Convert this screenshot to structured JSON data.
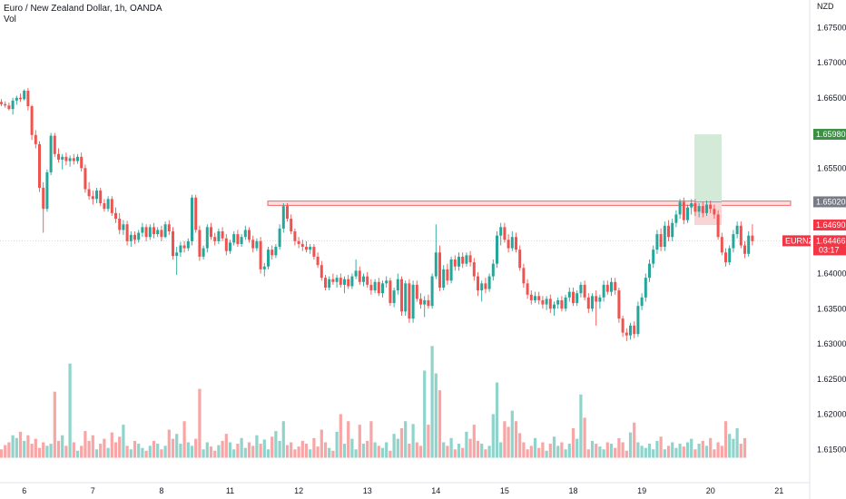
{
  "header": {
    "title": "Euro / New Zealand Dollar, 1h, OANDA",
    "volume_label": "Vol"
  },
  "colors": {
    "up": "#26a69a",
    "down": "#ef5350",
    "volume_up": "#8fd3cb",
    "volume_down": "#f7a6a5",
    "zone_fill": "#fbd3d3",
    "zone_stroke": "#ef5350",
    "target_fill": "#d4ead8",
    "stop_fill": "#f9d4d4",
    "target_badge": "#3d8f45",
    "entry_badge": "#787b86",
    "stop_badge": "#f23645",
    "last_badge": "#f23645"
  },
  "chart_data": {
    "type": "candlestick",
    "symbol": "EURNZD",
    "currency": "NZD",
    "ylim": [
      1.61,
      1.678
    ],
    "y_ticks": [
      "1.67500",
      "1.67000",
      "1.66500",
      "1.66000",
      "1.65500",
      "1.65000",
      "1.64500",
      "1.64000",
      "1.63500",
      "1.63000",
      "1.62500",
      "1.62000",
      "1.61500"
    ],
    "x_ticks": [
      "6",
      "7",
      "8",
      "11",
      "12",
      "13",
      "14",
      "15",
      "18",
      "19",
      "20",
      "21"
    ],
    "x_tick_slots": [
      6,
      24,
      42,
      60,
      78,
      96,
      114,
      132,
      150,
      168,
      186,
      204
    ],
    "candles": [
      [
        1.6644,
        1.6648,
        1.6638,
        1.6641
      ],
      [
        1.6641,
        1.6645,
        1.6636,
        1.6639
      ],
      [
        1.6639,
        1.6643,
        1.6632,
        1.6634
      ],
      [
        1.6634,
        1.665,
        1.6626,
        1.6646
      ],
      [
        1.6646,
        1.6653,
        1.664,
        1.665
      ],
      [
        1.665,
        1.6656,
        1.6644,
        1.6648
      ],
      [
        1.6648,
        1.6662,
        1.6646,
        1.666
      ],
      [
        1.666,
        1.6664,
        1.6632,
        1.6638
      ],
      [
        1.6638,
        1.664,
        1.659,
        1.6597
      ],
      [
        1.6597,
        1.6604,
        1.6578,
        1.6584
      ],
      [
        1.6584,
        1.6588,
        1.6516,
        1.6522
      ],
      [
        1.6522,
        1.653,
        1.6458,
        1.6492
      ],
      [
        1.6492,
        1.6548,
        1.6488,
        1.6544
      ],
      [
        1.6544,
        1.66,
        1.654,
        1.6596
      ],
      [
        1.6596,
        1.66,
        1.6566,
        1.657
      ],
      [
        1.657,
        1.6578,
        1.6558,
        1.6562
      ],
      [
        1.6562,
        1.657,
        1.6548,
        1.6566
      ],
      [
        1.6566,
        1.6572,
        1.6554,
        1.656
      ],
      [
        1.656,
        1.6568,
        1.6552,
        1.6564
      ],
      [
        1.6564,
        1.657,
        1.6555,
        1.656
      ],
      [
        1.656,
        1.657,
        1.6556,
        1.6566
      ],
      [
        1.6566,
        1.6572,
        1.6545,
        1.655
      ],
      [
        1.655,
        1.6555,
        1.6515,
        1.652
      ],
      [
        1.652,
        1.653,
        1.6505,
        1.651
      ],
      [
        1.651,
        1.6518,
        1.6498,
        1.6506
      ],
      [
        1.6506,
        1.6522,
        1.65,
        1.6518
      ],
      [
        1.6518,
        1.6522,
        1.6496,
        1.65
      ],
      [
        1.65,
        1.6506,
        1.6488,
        1.6492
      ],
      [
        1.6492,
        1.651,
        1.6488,
        1.6506
      ],
      [
        1.6506,
        1.651,
        1.6482,
        1.6486
      ],
      [
        1.6486,
        1.6494,
        1.6472,
        1.6478
      ],
      [
        1.6478,
        1.6486,
        1.6456,
        1.6462
      ],
      [
        1.6462,
        1.6476,
        1.6455,
        1.647
      ],
      [
        1.647,
        1.6475,
        1.644,
        1.6446
      ],
      [
        1.6446,
        1.646,
        1.6438,
        1.6455
      ],
      [
        1.6455,
        1.646,
        1.6442,
        1.6448
      ],
      [
        1.6448,
        1.6462,
        1.6444,
        1.6458
      ],
      [
        1.6458,
        1.6472,
        1.6452,
        1.6466
      ],
      [
        1.6466,
        1.647,
        1.6446,
        1.6452
      ],
      [
        1.6452,
        1.647,
        1.6448,
        1.6466
      ],
      [
        1.6466,
        1.6472,
        1.645,
        1.6456
      ],
      [
        1.6456,
        1.6466,
        1.6452,
        1.6462
      ],
      [
        1.6462,
        1.6468,
        1.6446,
        1.6452
      ],
      [
        1.6452,
        1.6474,
        1.645,
        1.647
      ],
      [
        1.647,
        1.6476,
        1.6455,
        1.646
      ],
      [
        1.646,
        1.6466,
        1.642,
        1.6425
      ],
      [
        1.6425,
        1.6438,
        1.6398,
        1.643
      ],
      [
        1.643,
        1.6445,
        1.6424,
        1.644
      ],
      [
        1.644,
        1.6446,
        1.643,
        1.6436
      ],
      [
        1.6436,
        1.645,
        1.6432,
        1.6446
      ],
      [
        1.6446,
        1.6512,
        1.644,
        1.6508
      ],
      [
        1.6508,
        1.6512,
        1.6458,
        1.6462
      ],
      [
        1.6462,
        1.6468,
        1.6418,
        1.6424
      ],
      [
        1.6424,
        1.644,
        1.642,
        1.6436
      ],
      [
        1.6436,
        1.647,
        1.643,
        1.6466
      ],
      [
        1.6466,
        1.6472,
        1.6448,
        1.6452
      ],
      [
        1.6452,
        1.6458,
        1.644,
        1.6446
      ],
      [
        1.6446,
        1.6464,
        1.6442,
        1.646
      ],
      [
        1.646,
        1.6466,
        1.6446,
        1.645
      ],
      [
        1.645,
        1.6456,
        1.6426,
        1.6432
      ],
      [
        1.6432,
        1.6448,
        1.6428,
        1.6444
      ],
      [
        1.6444,
        1.646,
        1.644,
        1.6456
      ],
      [
        1.6456,
        1.6462,
        1.6438,
        1.6442
      ],
      [
        1.6442,
        1.6456,
        1.6438,
        1.6452
      ],
      [
        1.6452,
        1.6468,
        1.6448,
        1.6462
      ],
      [
        1.6462,
        1.6466,
        1.6444,
        1.6448
      ],
      [
        1.6448,
        1.6454,
        1.643,
        1.6436
      ],
      [
        1.6436,
        1.645,
        1.6432,
        1.6446
      ],
      [
        1.6446,
        1.6452,
        1.64,
        1.6406
      ],
      [
        1.6406,
        1.6415,
        1.6396,
        1.641
      ],
      [
        1.641,
        1.6438,
        1.6406,
        1.6434
      ],
      [
        1.6434,
        1.644,
        1.642,
        1.6426
      ],
      [
        1.6426,
        1.6442,
        1.6422,
        1.6438
      ],
      [
        1.6438,
        1.647,
        1.6434,
        1.6464
      ],
      [
        1.6464,
        1.65,
        1.6458,
        1.6496
      ],
      [
        1.6496,
        1.65,
        1.6474,
        1.6478
      ],
      [
        1.6478,
        1.6484,
        1.6456,
        1.646
      ],
      [
        1.646,
        1.6464,
        1.644,
        1.6446
      ],
      [
        1.6446,
        1.6452,
        1.6436,
        1.6442
      ],
      [
        1.6442,
        1.6448,
        1.6432,
        1.6438
      ],
      [
        1.6438,
        1.6446,
        1.643,
        1.6434
      ],
      [
        1.6434,
        1.6442,
        1.6428,
        1.6438
      ],
      [
        1.6438,
        1.6442,
        1.642,
        1.6424
      ],
      [
        1.6424,
        1.643,
        1.6408,
        1.6412
      ],
      [
        1.6412,
        1.6418,
        1.639,
        1.6394
      ],
      [
        1.6394,
        1.6398,
        1.6376,
        1.638
      ],
      [
        1.638,
        1.6396,
        1.6376,
        1.6392
      ],
      [
        1.6392,
        1.64,
        1.6384,
        1.6388
      ],
      [
        1.6388,
        1.6398,
        1.638,
        1.6394
      ],
      [
        1.6394,
        1.64,
        1.638,
        1.6384
      ],
      [
        1.6384,
        1.6396,
        1.6372,
        1.6392
      ],
      [
        1.6392,
        1.6398,
        1.6378,
        1.6382
      ],
      [
        1.6382,
        1.64,
        1.6378,
        1.6396
      ],
      [
        1.6396,
        1.642,
        1.6392,
        1.6404
      ],
      [
        1.6404,
        1.641,
        1.6384,
        1.6388
      ],
      [
        1.6388,
        1.64,
        1.6382,
        1.6396
      ],
      [
        1.6396,
        1.6402,
        1.638,
        1.6384
      ],
      [
        1.6384,
        1.6392,
        1.637,
        1.6376
      ],
      [
        1.6376,
        1.6392,
        1.6372,
        1.6388
      ],
      [
        1.6388,
        1.6394,
        1.6368,
        1.6372
      ],
      [
        1.6372,
        1.639,
        1.6366,
        1.6386
      ],
      [
        1.6386,
        1.6396,
        1.638,
        1.639
      ],
      [
        1.639,
        1.6394,
        1.6354,
        1.6358
      ],
      [
        1.6358,
        1.638,
        1.6352,
        1.6376
      ],
      [
        1.6376,
        1.64,
        1.637,
        1.6392
      ],
      [
        1.6392,
        1.6396,
        1.634,
        1.6346
      ],
      [
        1.6346,
        1.639,
        1.634,
        1.6386
      ],
      [
        1.6386,
        1.6392,
        1.633,
        1.6336
      ],
      [
        1.6336,
        1.639,
        1.633,
        1.6384
      ],
      [
        1.6384,
        1.639,
        1.636,
        1.6364
      ],
      [
        1.6364,
        1.6372,
        1.635,
        1.6356
      ],
      [
        1.6356,
        1.6368,
        1.6338,
        1.6362
      ],
      [
        1.6362,
        1.637,
        1.635,
        1.6354
      ],
      [
        1.6354,
        1.64,
        1.635,
        1.6396
      ],
      [
        1.6396,
        1.647,
        1.6392,
        1.643
      ],
      [
        1.643,
        1.644,
        1.6375,
        1.638
      ],
      [
        1.638,
        1.6412,
        1.6376,
        1.6406
      ],
      [
        1.6406,
        1.6414,
        1.6384,
        1.639
      ],
      [
        1.639,
        1.6424,
        1.6386,
        1.642
      ],
      [
        1.642,
        1.6426,
        1.6404,
        1.641
      ],
      [
        1.641,
        1.643,
        1.6404,
        1.6424
      ],
      [
        1.6424,
        1.643,
        1.6408,
        1.6414
      ],
      [
        1.6414,
        1.643,
        1.641,
        1.6426
      ],
      [
        1.6426,
        1.6432,
        1.641,
        1.6416
      ],
      [
        1.6416,
        1.6422,
        1.639,
        1.6396
      ],
      [
        1.6396,
        1.6402,
        1.6368,
        1.6376
      ],
      [
        1.6376,
        1.639,
        1.636,
        1.6386
      ],
      [
        1.6386,
        1.6394,
        1.6372,
        1.6378
      ],
      [
        1.6378,
        1.64,
        1.6374,
        1.6396
      ],
      [
        1.6396,
        1.642,
        1.639,
        1.6414
      ],
      [
        1.6414,
        1.646,
        1.6408,
        1.6454
      ],
      [
        1.6454,
        1.6472,
        1.644,
        1.6466
      ],
      [
        1.6466,
        1.6472,
        1.6444,
        1.6448
      ],
      [
        1.6448,
        1.6456,
        1.643,
        1.6436
      ],
      [
        1.6436,
        1.646,
        1.6432,
        1.6452
      ],
      [
        1.6452,
        1.6458,
        1.643,
        1.6434
      ],
      [
        1.6434,
        1.644,
        1.6404,
        1.6408
      ],
      [
        1.6408,
        1.6414,
        1.638,
        1.6386
      ],
      [
        1.6386,
        1.6392,
        1.6364,
        1.637
      ],
      [
        1.637,
        1.6376,
        1.6356,
        1.6362
      ],
      [
        1.6362,
        1.6374,
        1.6358,
        1.6368
      ],
      [
        1.6368,
        1.6374,
        1.6356,
        1.6362
      ],
      [
        1.6362,
        1.6368,
        1.635,
        1.6356
      ],
      [
        1.6356,
        1.6368,
        1.6348,
        1.6364
      ],
      [
        1.6364,
        1.637,
        1.6344,
        1.635
      ],
      [
        1.635,
        1.636,
        1.634,
        1.6356
      ],
      [
        1.6356,
        1.6366,
        1.635,
        1.6362
      ],
      [
        1.6362,
        1.6368,
        1.6346,
        1.635
      ],
      [
        1.635,
        1.637,
        1.6346,
        1.6366
      ],
      [
        1.6366,
        1.638,
        1.636,
        1.6374
      ],
      [
        1.6374,
        1.638,
        1.6354,
        1.6358
      ],
      [
        1.6358,
        1.6376,
        1.6354,
        1.6372
      ],
      [
        1.6372,
        1.6388,
        1.6366,
        1.6384
      ],
      [
        1.6384,
        1.639,
        1.6362,
        1.6366
      ],
      [
        1.6366,
        1.6372,
        1.6344,
        1.635
      ],
      [
        1.635,
        1.6372,
        1.6346,
        1.6368
      ],
      [
        1.6368,
        1.6376,
        1.6326,
        1.636
      ],
      [
        1.636,
        1.637,
        1.635,
        1.6366
      ],
      [
        1.6366,
        1.639,
        1.636,
        1.6384
      ],
      [
        1.6384,
        1.639,
        1.637,
        1.6374
      ],
      [
        1.6374,
        1.6394,
        1.6368,
        1.6388
      ],
      [
        1.6388,
        1.6394,
        1.637,
        1.6376
      ],
      [
        1.6376,
        1.638,
        1.633,
        1.6336
      ],
      [
        1.6336,
        1.634,
        1.631,
        1.6316
      ],
      [
        1.6316,
        1.6322,
        1.6304,
        1.6312
      ],
      [
        1.6312,
        1.633,
        1.6306,
        1.6326
      ],
      [
        1.6326,
        1.6332,
        1.6308,
        1.6314
      ],
      [
        1.6314,
        1.636,
        1.631,
        1.6354
      ],
      [
        1.6354,
        1.6372,
        1.6348,
        1.6366
      ],
      [
        1.6366,
        1.64,
        1.636,
        1.6394
      ],
      [
        1.6394,
        1.642,
        1.6388,
        1.6414
      ],
      [
        1.6414,
        1.644,
        1.6408,
        1.6434
      ],
      [
        1.6434,
        1.6462,
        1.6428,
        1.6456
      ],
      [
        1.6456,
        1.6464,
        1.6432,
        1.6438
      ],
      [
        1.6438,
        1.6474,
        1.6432,
        1.6468
      ],
      [
        1.6468,
        1.6476,
        1.6446,
        1.6452
      ],
      [
        1.6452,
        1.6478,
        1.6446,
        1.6472
      ],
      [
        1.6472,
        1.649,
        1.6466,
        1.6484
      ],
      [
        1.6484,
        1.6506,
        1.6478,
        1.6502
      ],
      [
        1.6502,
        1.6508,
        1.647,
        1.6476
      ],
      [
        1.6476,
        1.6498,
        1.6472,
        1.6494
      ],
      [
        1.6494,
        1.6506,
        1.6484,
        1.65
      ],
      [
        1.65,
        1.6506,
        1.6482,
        1.6488
      ],
      [
        1.6488,
        1.65,
        1.648,
        1.6496
      ],
      [
        1.6496,
        1.6502,
        1.648,
        1.6486
      ],
      [
        1.6486,
        1.6504,
        1.6482,
        1.6498
      ],
      [
        1.6498,
        1.6504,
        1.6486,
        1.6492
      ],
      [
        1.6492,
        1.6498,
        1.6478,
        1.6484
      ],
      [
        1.6484,
        1.649,
        1.6448,
        1.6452
      ],
      [
        1.6452,
        1.6458,
        1.6426,
        1.643
      ],
      [
        1.643,
        1.6436,
        1.641,
        1.6416
      ],
      [
        1.6416,
        1.644,
        1.6412,
        1.6436
      ],
      [
        1.6436,
        1.6462,
        1.643,
        1.6456
      ],
      [
        1.6456,
        1.6474,
        1.645,
        1.6468
      ],
      [
        1.6468,
        1.6474,
        1.6436,
        1.644
      ],
      [
        1.644,
        1.6446,
        1.6422,
        1.6428
      ],
      [
        1.6428,
        1.646,
        1.6424,
        1.6454
      ],
      [
        1.6454,
        1.647,
        1.644,
        1.6446
      ]
    ],
    "volumes": [
      1.615,
      1.6156,
      1.616,
      1.617,
      1.6166,
      1.6175,
      1.6162,
      1.617,
      1.6158,
      1.6165,
      1.6152,
      1.616,
      1.6155,
      1.6158,
      1.6232,
      1.6162,
      1.617,
      1.6155,
      1.6272,
      1.616,
      1.6148,
      1.6155,
      1.6176,
      1.6162,
      1.617,
      1.615,
      1.6158,
      1.6165,
      1.6152,
      1.6174,
      1.616,
      1.6168,
      1.6185,
      1.6155,
      1.615,
      1.6162,
      1.6158,
      1.6152,
      1.6148,
      1.6155,
      1.6162,
      1.6158,
      1.615,
      1.6155,
      1.6178,
      1.6165,
      1.6172,
      1.6158,
      1.619,
      1.616,
      1.6155,
      1.6165,
      1.6236,
      1.615,
      1.616,
      1.6154,
      1.6148,
      1.6156,
      1.6162,
      1.6172,
      1.616,
      1.615,
      1.6158,
      1.6166,
      1.6152,
      1.616,
      1.6155,
      1.617,
      1.6158,
      1.6164,
      1.615,
      1.6168,
      1.6176,
      1.6162,
      1.619,
      1.6156,
      1.616,
      1.615,
      1.6154,
      1.6162,
      1.6158,
      1.615,
      1.6166,
      1.6154,
      1.6178,
      1.616,
      1.6152,
      1.6148,
      1.6175,
      1.62,
      1.6158,
      1.619,
      1.6165,
      1.615,
      1.6185,
      1.6158,
      1.6162,
      1.619,
      1.616,
      1.6155,
      1.6152,
      1.616,
      1.6148,
      1.6172,
      1.6165,
      1.618,
      1.619,
      1.6158,
      1.6186,
      1.616,
      1.6155,
      1.6262,
      1.6185,
      1.6297,
      1.6258,
      1.6234,
      1.616,
      1.6155,
      1.6166,
      1.615,
      1.6158,
      1.6152,
      1.6175,
      1.6165,
      1.6185,
      1.6162,
      1.6158,
      1.615,
      1.6155,
      1.62,
      1.6245,
      1.616,
      1.619,
      1.6182,
      1.6205,
      1.619,
      1.6173,
      1.616,
      1.615,
      1.6155,
      1.6166,
      1.6152,
      1.616,
      1.6148,
      1.6158,
      1.6168,
      1.6155,
      1.616,
      1.615,
      1.6158,
      1.618,
      1.6165,
      1.6228,
      1.6195,
      1.615,
      1.6162,
      1.6158,
      1.6154,
      1.615,
      1.616,
      1.6158,
      1.6152,
      1.6166,
      1.616,
      1.6148,
      1.6174,
      1.6188,
      1.616,
      1.6155,
      1.6152,
      1.6158,
      1.615,
      1.6162,
      1.6168,
      1.615,
      1.6155,
      1.616,
      1.6152,
      1.6158,
      1.6154,
      1.616,
      1.6165,
      1.615,
      1.6158,
      1.6162,
      1.6155,
      1.6166,
      1.615,
      1.616,
      1.6155,
      1.619,
      1.6172,
      1.6165,
      1.618,
      1.6158,
      1.6166
    ],
    "resistance_zone": [
      1.6497,
      1.6503
    ],
    "position": {
      "entry": 1.6502,
      "target": 1.6598,
      "stop": 1.6469
    },
    "last_price": 1.64466,
    "price_labels": {
      "target": "1.65980",
      "entry": "1.65020",
      "stop": "1.64690",
      "last_symbol": "EURNZD",
      "last": "1.64466",
      "countdown": "03:17"
    }
  }
}
